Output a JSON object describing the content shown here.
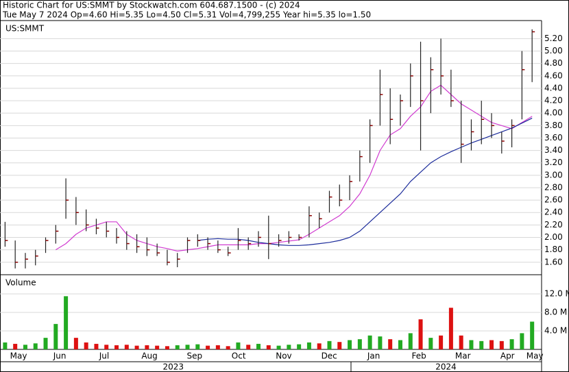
{
  "chart_data": {
    "type": "ohlc",
    "title": "Historic Chart for US:SMMT by Stockwatch.com 604.687.1500 - (c) 2024",
    "subtitle": "Tue May  7 2024  Op=4.60  Hi=5.35  Lo=4.50  Cl=5.31  Vol=4,799,255  Year hi=5.35  lo=1.50",
    "symbol_label": "US:SMMT",
    "bar_color": "#8b0000",
    "high": [
      2.25,
      1.95,
      1.75,
      1.8,
      2.0,
      2.2,
      2.95,
      2.65,
      2.45,
      2.3,
      2.25,
      2.15,
      2.1,
      2.05,
      2.0,
      1.9,
      1.8,
      1.75,
      2.0,
      2.05,
      2.0,
      1.95,
      1.85,
      2.15,
      2.0,
      2.1,
      2.35,
      2.05,
      2.1,
      2.05,
      2.5,
      2.4,
      2.75,
      2.85,
      3.0,
      3.4,
      3.9,
      4.7,
      4.4,
      4.3,
      4.8,
      5.15,
      4.9,
      5.2,
      4.7,
      4.2,
      3.9,
      4.2,
      4.0,
      3.7,
      3.9,
      5.0,
      5.35
    ],
    "low": [
      1.85,
      1.5,
      1.5,
      1.55,
      1.75,
      1.9,
      2.3,
      2.2,
      2.1,
      2.05,
      2.0,
      1.9,
      1.8,
      1.75,
      1.7,
      1.7,
      1.55,
      1.52,
      1.75,
      1.85,
      1.8,
      1.75,
      1.7,
      1.8,
      1.8,
      1.85,
      1.65,
      1.85,
      1.9,
      1.95,
      2.0,
      2.15,
      2.4,
      2.5,
      2.6,
      2.9,
      3.2,
      3.8,
      3.5,
      3.8,
      4.1,
      3.4,
      4.0,
      4.3,
      4.1,
      3.2,
      3.4,
      3.5,
      3.6,
      3.35,
      3.45,
      3.9,
      4.5
    ],
    "close": [
      1.95,
      1.6,
      1.65,
      1.7,
      1.95,
      2.1,
      2.6,
      2.4,
      2.2,
      2.15,
      2.1,
      2.0,
      1.9,
      1.85,
      1.8,
      1.75,
      1.6,
      1.65,
      1.95,
      1.95,
      1.9,
      1.8,
      1.75,
      1.95,
      1.9,
      2.0,
      1.9,
      1.95,
      2.0,
      2.0,
      2.35,
      2.3,
      2.65,
      2.6,
      2.9,
      3.3,
      3.8,
      4.3,
      3.9,
      4.2,
      4.6,
      4.2,
      4.7,
      4.6,
      4.2,
      3.5,
      3.7,
      3.9,
      3.8,
      3.55,
      3.8,
      4.7,
      5.31
    ],
    "moving_averages": [
      {
        "color": "#d03ad0",
        "values": [
          null,
          null,
          null,
          null,
          null,
          1.8,
          1.9,
          2.05,
          2.15,
          2.2,
          2.25,
          2.25,
          2.05,
          1.95,
          1.9,
          1.85,
          1.82,
          1.78,
          1.8,
          1.82,
          1.85,
          1.88,
          1.88,
          1.88,
          1.88,
          1.9,
          1.9,
          1.92,
          1.94,
          1.96,
          2.05,
          2.15,
          2.25,
          2.35,
          2.5,
          2.7,
          3.0,
          3.4,
          3.65,
          3.75,
          3.95,
          4.1,
          4.35,
          4.45,
          4.3,
          4.15,
          4.05,
          3.95,
          3.85,
          3.8,
          3.75,
          3.85,
          3.95
        ]
      },
      {
        "color": "#1a2a9a",
        "values": [
          null,
          null,
          null,
          null,
          null,
          null,
          null,
          null,
          null,
          null,
          null,
          null,
          null,
          null,
          null,
          null,
          null,
          null,
          null,
          1.95,
          1.97,
          1.98,
          1.97,
          1.97,
          1.95,
          1.92,
          1.9,
          1.88,
          1.87,
          1.87,
          1.88,
          1.9,
          1.92,
          1.95,
          2.0,
          2.1,
          2.25,
          2.4,
          2.55,
          2.7,
          2.9,
          3.05,
          3.2,
          3.3,
          3.38,
          3.45,
          3.52,
          3.58,
          3.64,
          3.7,
          3.76,
          3.84,
          3.92
        ]
      }
    ],
    "xlim": [
      -0.5,
      52.8
    ],
    "ylim": [
      1.41,
      5.48
    ],
    "yticks": [
      {
        "value": 1.6,
        "label": "1.60"
      },
      {
        "value": 1.8,
        "label": "1.80"
      },
      {
        "value": 2.0,
        "label": "2.00"
      },
      {
        "value": 2.2,
        "label": "2.20"
      },
      {
        "value": 2.4,
        "label": "2.40"
      },
      {
        "value": 2.6,
        "label": "2.60"
      },
      {
        "value": 2.8,
        "label": "2.80"
      },
      {
        "value": 3.0,
        "label": "3.00"
      },
      {
        "value": 3.2,
        "label": "3.20"
      },
      {
        "value": 3.4,
        "label": "3.40"
      },
      {
        "value": 3.6,
        "label": "3.60"
      },
      {
        "value": 3.8,
        "label": "3.80"
      },
      {
        "value": 4.0,
        "label": "4.00"
      },
      {
        "value": 4.2,
        "label": "4.20"
      },
      {
        "value": 4.4,
        "label": "4.40"
      },
      {
        "value": 4.6,
        "label": "4.60"
      },
      {
        "value": 4.8,
        "label": "4.80"
      },
      {
        "value": 5.0,
        "label": "5.00"
      },
      {
        "value": 5.2,
        "label": "5.20"
      }
    ],
    "grid": true,
    "month_ticks": [
      {
        "value": 1.33,
        "label": "May"
      },
      {
        "value": 5.39,
        "label": "Jun"
      },
      {
        "value": 9.78,
        "label": "Jul"
      },
      {
        "value": 14.25,
        "label": "Aug"
      },
      {
        "value": 18.7,
        "label": "Sep"
      },
      {
        "value": 23.05,
        "label": "Oct"
      },
      {
        "value": 27.5,
        "label": "Nov"
      },
      {
        "value": 31.98,
        "label": "Dec"
      },
      {
        "value": 36.37,
        "label": "Jan"
      },
      {
        "value": 40.84,
        "label": "Feb"
      },
      {
        "value": 45.17,
        "label": "Mar"
      },
      {
        "value": 49.57,
        "label": "Apr"
      },
      {
        "value": 52.27,
        "label": "May"
      }
    ],
    "year_ticks": [
      {
        "value": 16.6,
        "label": "2023"
      },
      {
        "value": 43.5,
        "label": "2024"
      }
    ],
    "volume": {
      "label": "Volume",
      "up_color": "#22aa22",
      "down_color": "#dd1111",
      "values": [
        1.5,
        1.2,
        1.0,
        1.3,
        2.5,
        5.5,
        11.5,
        2.5,
        1.5,
        1.2,
        1.0,
        0.9,
        1.0,
        0.8,
        0.9,
        0.8,
        0.7,
        0.9,
        1.0,
        1.1,
        0.8,
        0.9,
        0.7,
        1.5,
        1.0,
        1.2,
        0.9,
        0.8,
        1.0,
        1.1,
        1.5,
        1.3,
        1.8,
        1.6,
        2.0,
        2.2,
        3.0,
        2.8,
        2.2,
        2.0,
        3.5,
        6.5,
        2.5,
        3.0,
        9.0,
        3.0,
        2.0,
        1.8,
        2.0,
        1.8,
        2.2,
        3.5,
        6.0
      ],
      "ylim": [
        0,
        16
      ],
      "yticks": [
        {
          "value": 4,
          "label": "4.0 M"
        },
        {
          "value": 8,
          "label": "8.0 M"
        },
        {
          "value": 12,
          "label": "12.0 M"
        }
      ]
    }
  }
}
